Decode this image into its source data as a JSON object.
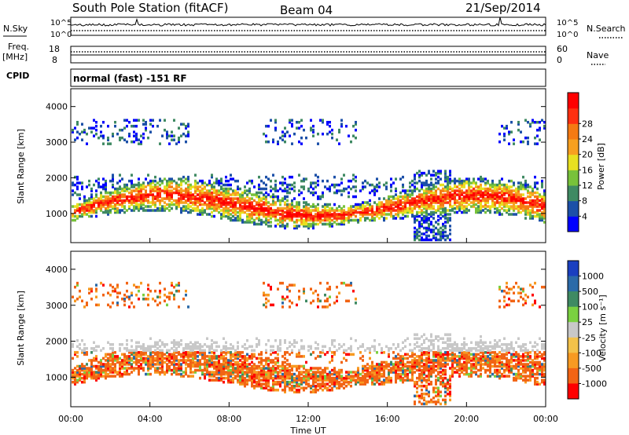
{
  "header": {
    "station": "South Pole Station (fitACF)",
    "beam": "Beam 04",
    "date": "21/Sep/2014"
  },
  "upper_panels": {
    "nsky_label": "N.Sky",
    "nsearch_label": "N.Search",
    "nsky_ticks": [
      "10^5",
      "10^0"
    ],
    "nsky_right_ticks": [
      "10^5",
      "10^0"
    ],
    "freq_label": "Freq.",
    "freq_unit": "[MHz]",
    "freq_ticks": [
      "18",
      "8"
    ],
    "nave_ticks": [
      "60",
      "0"
    ],
    "nave_label": "Nave",
    "cpid_label": "CPID",
    "mode": "normal (fast) -151 RF"
  },
  "chart_data": [
    {
      "type": "heatmap",
      "panel": "power",
      "ylabel": "Slant Range [km]",
      "y_ticks": [
        1000,
        2000,
        3000,
        4000
      ],
      "ylim": [
        180,
        4500
      ],
      "x_ticks": [
        "00:00",
        "04:00",
        "08:00",
        "12:00",
        "16:00",
        "20:00",
        "00:00"
      ],
      "colorbar": {
        "label": "Power [dB]",
        "ticks": [
          "4",
          "8",
          "12",
          "16",
          "20",
          "24",
          "28"
        ],
        "colors": [
          "#0000ff",
          "#1c50a8",
          "#3f8a63",
          "#78c23a",
          "#e8e020",
          "#f7a020",
          "#f57a12",
          "#ff3010",
          "#ff0000"
        ]
      }
    },
    {
      "type": "heatmap",
      "panel": "velocity",
      "ylabel": "Slant Range [km]",
      "xlabel": "Time UT",
      "y_ticks": [
        1000,
        2000,
        3000,
        4000
      ],
      "ylim": [
        180,
        4500
      ],
      "x_ticks": [
        "00:00",
        "04:00",
        "08:00",
        "12:00",
        "16:00",
        "20:00",
        "00:00"
      ],
      "colorbar": {
        "label": "Velocity [m s⁻¹]",
        "ticks": [
          "1000",
          "500",
          "100",
          "25",
          "-25",
          "-100",
          "-500",
          "-1000"
        ],
        "colors": [
          "#1a3fc0",
          "#2b6aa8",
          "#3f8a63",
          "#7ad040",
          "#c8c8c8",
          "#f3c24a",
          "#f79a22",
          "#f26414",
          "#ff0000"
        ]
      }
    }
  ]
}
